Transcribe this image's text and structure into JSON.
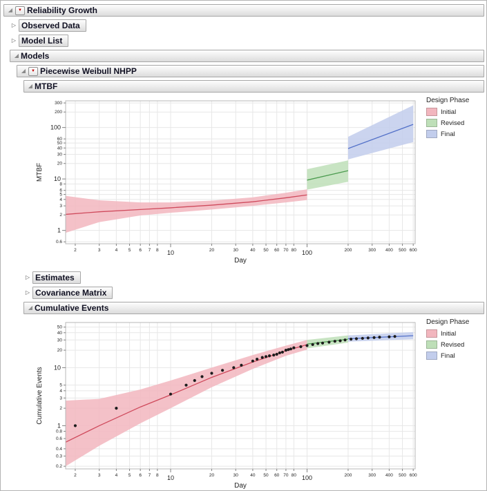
{
  "sections": {
    "reliability_growth": "Reliability Growth",
    "observed_data": "Observed Data",
    "model_list": "Model List",
    "models": "Models",
    "piecewise_weibull_nhpp": "Piecewise Weibull NHPP",
    "mtbf": "MTBF",
    "estimates": "Estimates",
    "covariance_matrix": "Covariance Matrix",
    "cumulative_events": "Cumulative Events"
  },
  "legend": {
    "title": "Design Phase",
    "items": [
      {
        "label": "Initial",
        "color": "#f2b6be"
      },
      {
        "label": "Revised",
        "color": "#bedfb8"
      },
      {
        "label": "Final",
        "color": "#c2cdec"
      }
    ]
  },
  "chart_data": [
    {
      "type": "area",
      "title": "MTBF",
      "xlabel": "Day",
      "ylabel": "MTBF",
      "xscale": "log",
      "yscale": "log",
      "grid": true,
      "legend_position": "right",
      "xlim": [
        1.7,
        620
      ],
      "ylim": [
        0.55,
        330
      ],
      "xticks": [
        2,
        3,
        4,
        5,
        6,
        7,
        8,
        10,
        20,
        30,
        40,
        50,
        60,
        70,
        80,
        100,
        200,
        300,
        400,
        500,
        600
      ],
      "xticks_major": [
        10,
        100
      ],
      "yticks": [
        0.6,
        1,
        2,
        3,
        4,
        5,
        6,
        8,
        10,
        20,
        30,
        40,
        50,
        60,
        100,
        200,
        300
      ],
      "yticks_major": [
        1,
        10,
        100
      ],
      "series": [
        {
          "name": "Initial",
          "line_color": "#cf4a5c",
          "fill_color": "#f2b6be",
          "x": [
            1.7,
            3,
            6,
            10,
            20,
            40,
            70,
            100
          ],
          "mid": [
            2.05,
            2.3,
            2.55,
            2.75,
            3.1,
            3.6,
            4.3,
            4.9
          ],
          "lo": [
            0.9,
            1.45,
            1.95,
            2.2,
            2.55,
            3.0,
            3.5,
            3.9
          ],
          "hi": [
            4.7,
            3.85,
            3.5,
            3.5,
            3.8,
            4.4,
            5.4,
            6.3
          ]
        },
        {
          "name": "Revised",
          "line_color": "#4b9b4f",
          "fill_color": "#bedfb8",
          "x": [
            100,
            200
          ],
          "mid": [
            9.5,
            14.5
          ],
          "lo": [
            6.2,
            8.8
          ],
          "hi": [
            15.5,
            23
          ]
        },
        {
          "name": "Final",
          "line_color": "#5270c8",
          "fill_color": "#c2cdec",
          "x": [
            200,
            600
          ],
          "mid": [
            39,
            115
          ],
          "lo": [
            24,
            52
          ],
          "hi": [
            66,
            270
          ]
        }
      ],
      "points": []
    },
    {
      "type": "area-scatter",
      "title": "Cumulative Events",
      "xlabel": "Day",
      "ylabel": "Cumulative Events",
      "xscale": "log",
      "yscale": "log",
      "grid": true,
      "legend_position": "right",
      "xlim": [
        1.7,
        620
      ],
      "ylim": [
        0.18,
        60
      ],
      "xticks": [
        2,
        3,
        4,
        5,
        6,
        7,
        8,
        10,
        20,
        30,
        40,
        50,
        60,
        70,
        80,
        100,
        200,
        300,
        400,
        500,
        600
      ],
      "xticks_major": [
        10,
        100
      ],
      "yticks": [
        0.2,
        0.3,
        0.4,
        0.6,
        0.8,
        1,
        2,
        3,
        4,
        5,
        10,
        20,
        30,
        40,
        50
      ],
      "yticks_major": [
        1,
        10
      ],
      "series": [
        {
          "name": "Initial",
          "line_color": "#cf4a5c",
          "fill_color": "#f2b6be",
          "x": [
            1.7,
            3,
            6,
            10,
            20,
            40,
            70,
            100
          ],
          "mid": [
            0.52,
            1.0,
            2.1,
            3.4,
            6.8,
            12.5,
            19.5,
            25
          ],
          "lo": [
            0.2,
            0.45,
            1.1,
            2.0,
            4.6,
            9.5,
            16,
            20.5
          ],
          "hi": [
            2.7,
            2.9,
            4.2,
            6.0,
            10,
            16.5,
            24,
            30
          ]
        },
        {
          "name": "Revised",
          "line_color": "#4b9b4f",
          "fill_color": "#bedfb8",
          "x": [
            100,
            200
          ],
          "mid": [
            25.5,
            31
          ],
          "lo": [
            21.5,
            27
          ],
          "hi": [
            30,
            36
          ]
        },
        {
          "name": "Final",
          "line_color": "#5270c8",
          "fill_color": "#c2cdec",
          "x": [
            200,
            600
          ],
          "mid": [
            31.5,
            35.5
          ],
          "lo": [
            28,
            31
          ],
          "hi": [
            36,
            41
          ]
        }
      ],
      "points": [
        [
          2,
          1
        ],
        [
          4,
          2
        ],
        [
          10,
          3.5
        ],
        [
          13,
          5
        ],
        [
          15,
          6
        ],
        [
          17,
          7
        ],
        [
          20,
          8
        ],
        [
          24,
          9
        ],
        [
          29,
          10
        ],
        [
          33,
          11
        ],
        [
          40,
          13
        ],
        [
          43,
          14
        ],
        [
          47,
          15
        ],
        [
          50,
          15.5
        ],
        [
          53,
          16
        ],
        [
          57,
          16.5
        ],
        [
          60,
          17
        ],
        [
          63,
          18
        ],
        [
          66,
          18.5
        ],
        [
          70,
          20
        ],
        [
          73,
          20.5
        ],
        [
          76,
          21
        ],
        [
          80,
          22
        ],
        [
          90,
          23
        ],
        [
          100,
          24
        ],
        [
          110,
          25
        ],
        [
          120,
          26
        ],
        [
          130,
          26.5
        ],
        [
          145,
          27.5
        ],
        [
          160,
          28.5
        ],
        [
          175,
          29
        ],
        [
          190,
          30
        ],
        [
          210,
          31
        ],
        [
          230,
          31.5
        ],
        [
          255,
          32
        ],
        [
          280,
          32.5
        ],
        [
          310,
          33
        ],
        [
          340,
          33.5
        ],
        [
          400,
          34
        ],
        [
          440,
          34.5
        ]
      ]
    }
  ]
}
